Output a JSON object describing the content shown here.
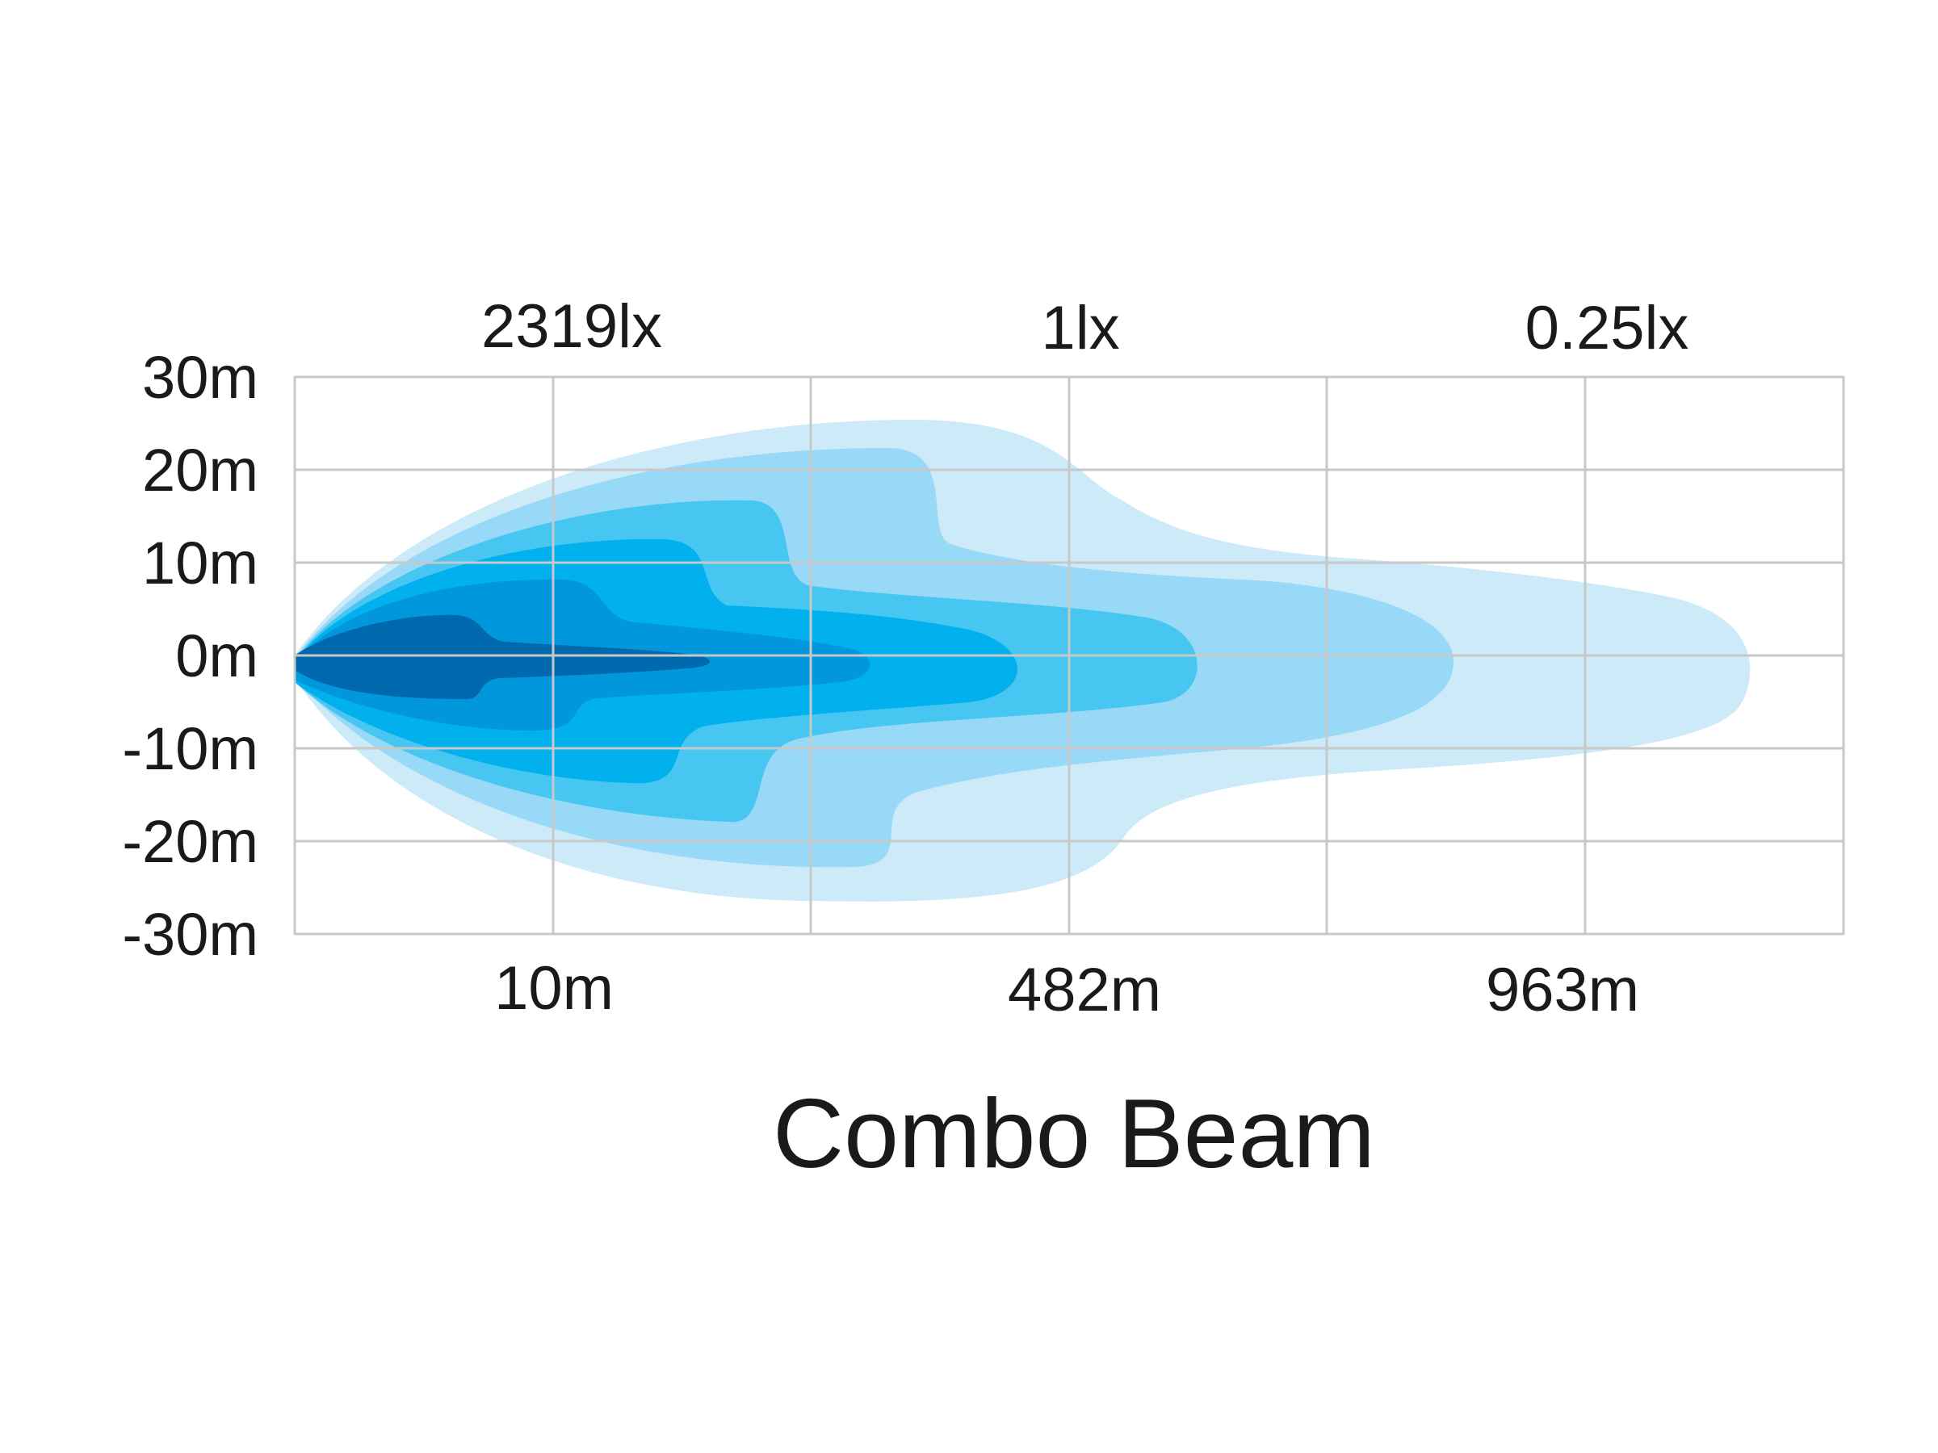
{
  "chart_data": {
    "type": "area",
    "title": "Combo Beam",
    "xlabel": "",
    "ylabel": "",
    "y_tick_labels": [
      "30m",
      "20m",
      "10m",
      "0m",
      "-10m",
      "-20m",
      "-30m"
    ],
    "x_tick_labels": [
      "10m",
      "482m",
      "963m"
    ],
    "lux_labels": [
      "2319lx",
      "1lx",
      "0.25lx"
    ],
    "ylim": [
      -30,
      30
    ],
    "grid": true,
    "colors": {
      "zone1": "#cdeaf9",
      "zone2": "#97d9f6",
      "zone3": "#48c6f2",
      "zone4": "#00b1ee",
      "zone5": "#0097dd",
      "zone6": "#0068ad"
    }
  }
}
